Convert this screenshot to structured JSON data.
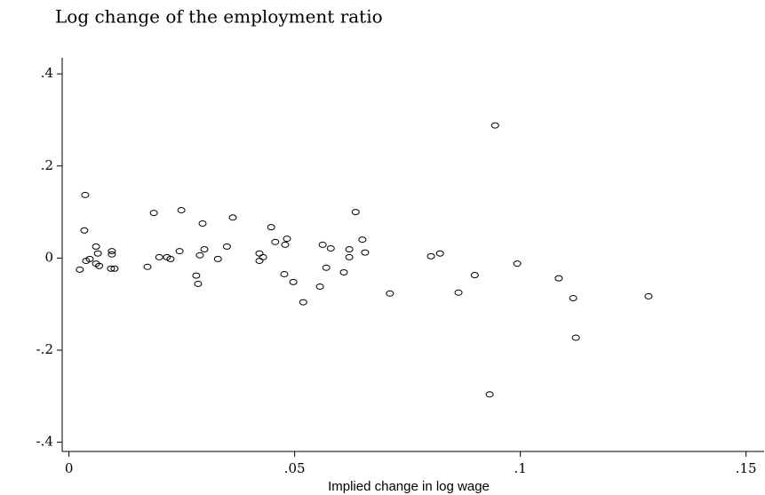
{
  "chart_data": {
    "type": "scatter",
    "title": "Log change of the employment ratio",
    "x_label": "Implied change in log wage",
    "xlim": [
      -0.0015,
      0.154
    ],
    "ylim": [
      -0.42,
      0.435
    ],
    "xticks": [
      0,
      {
        "value": 0.05,
        "label": ".05"
      },
      {
        "value": 0.1,
        "label": ".1"
      },
      {
        "value": 0.15,
        "label": ".15"
      }
    ],
    "yticks": [
      {
        "value": -0.4,
        "label": "-.4"
      },
      {
        "value": -0.2,
        "label": "-.2"
      },
      0,
      {
        "value": 0.2,
        "label": ".2"
      },
      {
        "value": 0.4,
        "label": ".4"
      }
    ],
    "color": "#000000",
    "x": [
      0.0024,
      0.0034,
      0.0036,
      0.0038,
      0.0046,
      0.006,
      0.006,
      0.0064,
      0.0067,
      0.0093,
      0.0095,
      0.0095,
      0.0101,
      0.0174,
      0.0188,
      0.02,
      0.0217,
      0.0225,
      0.0245,
      0.0249,
      0.0282,
      0.0286,
      0.029,
      0.0296,
      0.03,
      0.033,
      0.035,
      0.0363,
      0.0422,
      0.0422,
      0.043,
      0.0448,
      0.0457,
      0.0477,
      0.0479,
      0.0483,
      0.0497,
      0.0519,
      0.0556,
      0.0562,
      0.057,
      0.058,
      0.0609,
      0.0621,
      0.0621,
      0.0635,
      0.065,
      0.0656,
      0.0711,
      0.0802,
      0.0822,
      0.0863,
      0.0899,
      0.0932,
      0.0944,
      0.0993,
      0.1085,
      0.1117,
      0.1123,
      0.1284
    ],
    "values": [
      -0.025,
      0.06,
      0.137,
      -0.006,
      -0.002,
      0.025,
      -0.012,
      0.01,
      -0.017,
      -0.023,
      0.015,
      0.008,
      -0.023,
      -0.019,
      0.098,
      0.002,
      0.002,
      -0.002,
      0.015,
      0.104,
      -0.038,
      -0.056,
      0.006,
      0.075,
      0.019,
      -0.002,
      0.025,
      0.088,
      0.01,
      -0.006,
      0.002,
      0.067,
      0.035,
      -0.035,
      0.029,
      0.042,
      -0.052,
      -0.096,
      -0.062,
      0.029,
      -0.021,
      0.021,
      -0.031,
      0.019,
      0.002,
      0.1,
      0.04,
      0.012,
      -0.077,
      0.004,
      0.01,
      -0.075,
      -0.037,
      -0.296,
      0.288,
      -0.012,
      -0.044,
      -0.087,
      -0.173,
      -0.083
    ]
  }
}
